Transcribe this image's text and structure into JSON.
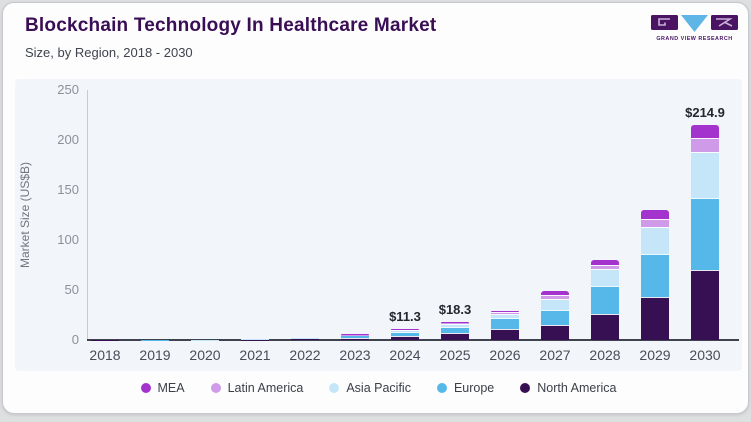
{
  "header": {
    "title": "Blockchain Technology In Healthcare Market",
    "subtitle": "Size, by Region, 2018 - 2030"
  },
  "logo": {
    "text": "GRAND VIEW RESEARCH",
    "left_glyph": "G",
    "right_glyph": "R",
    "purple": "#4a1463",
    "blue": "#5fb6e6"
  },
  "chart_data": {
    "type": "bar",
    "stacked": true,
    "title": "Blockchain Technology In Healthcare Market",
    "subtitle": "Size, by Region, 2018 - 2030",
    "xlabel": "",
    "ylabel": "Market Size (US$B)",
    "ylim": [
      0,
      250
    ],
    "yticks": [
      0,
      50,
      100,
      150,
      200,
      250
    ],
    "grid": false,
    "legend_position": "bottom",
    "categories": [
      "2018",
      "2019",
      "2020",
      "2021",
      "2022",
      "2023",
      "2024",
      "2025",
      "2026",
      "2027",
      "2028",
      "2029",
      "2030"
    ],
    "series": [
      {
        "name": "North America",
        "color": "#371054",
        "values": [
          0.09,
          0.14,
          0.22,
          0.4,
          0.9,
          2.3,
          4.5,
          7.0,
          11.5,
          15.5,
          26.5,
          43.0,
          70.0
        ]
      },
      {
        "name": "Europe",
        "color": "#55b8e8",
        "values": [
          0.07,
          0.1,
          0.17,
          0.3,
          0.65,
          1.9,
          3.8,
          6.0,
          10.5,
          15.0,
          28.0,
          43.5,
          72.0
        ]
      },
      {
        "name": "Asia Pacific",
        "color": "#c5e6f8",
        "values": [
          0.03,
          0.04,
          0.08,
          0.15,
          0.35,
          1.0,
          2.0,
          3.3,
          4.0,
          10.5,
          16.5,
          27.0,
          46.5
        ]
      },
      {
        "name": "Latin America",
        "color": "#cf9be8",
        "values": [
          0.01,
          0.01,
          0.02,
          0.03,
          0.06,
          0.25,
          0.6,
          1.2,
          2.5,
          4.0,
          4.5,
          7.5,
          13.5
        ]
      },
      {
        "name": "MEA",
        "color": "#a333cc",
        "values": [
          0.01,
          0.01,
          0.01,
          0.02,
          0.04,
          0.15,
          0.4,
          0.8,
          1.0,
          4.0,
          4.5,
          9.5,
          12.9
        ]
      }
    ],
    "totals": [
      0.21,
      0.3,
      0.5,
      0.9,
      2.0,
      5.6,
      11.3,
      18.3,
      29.5,
      49.0,
      80.0,
      130.5,
      214.9
    ],
    "legend_order": [
      "MEA",
      "Latin America",
      "Asia Pacific",
      "Europe",
      "North America"
    ],
    "annotations": [
      {
        "category": "2024",
        "label": "$11.3"
      },
      {
        "category": "2025",
        "label": "$18.3"
      },
      {
        "category": "2030",
        "label": "$214.9"
      }
    ]
  }
}
